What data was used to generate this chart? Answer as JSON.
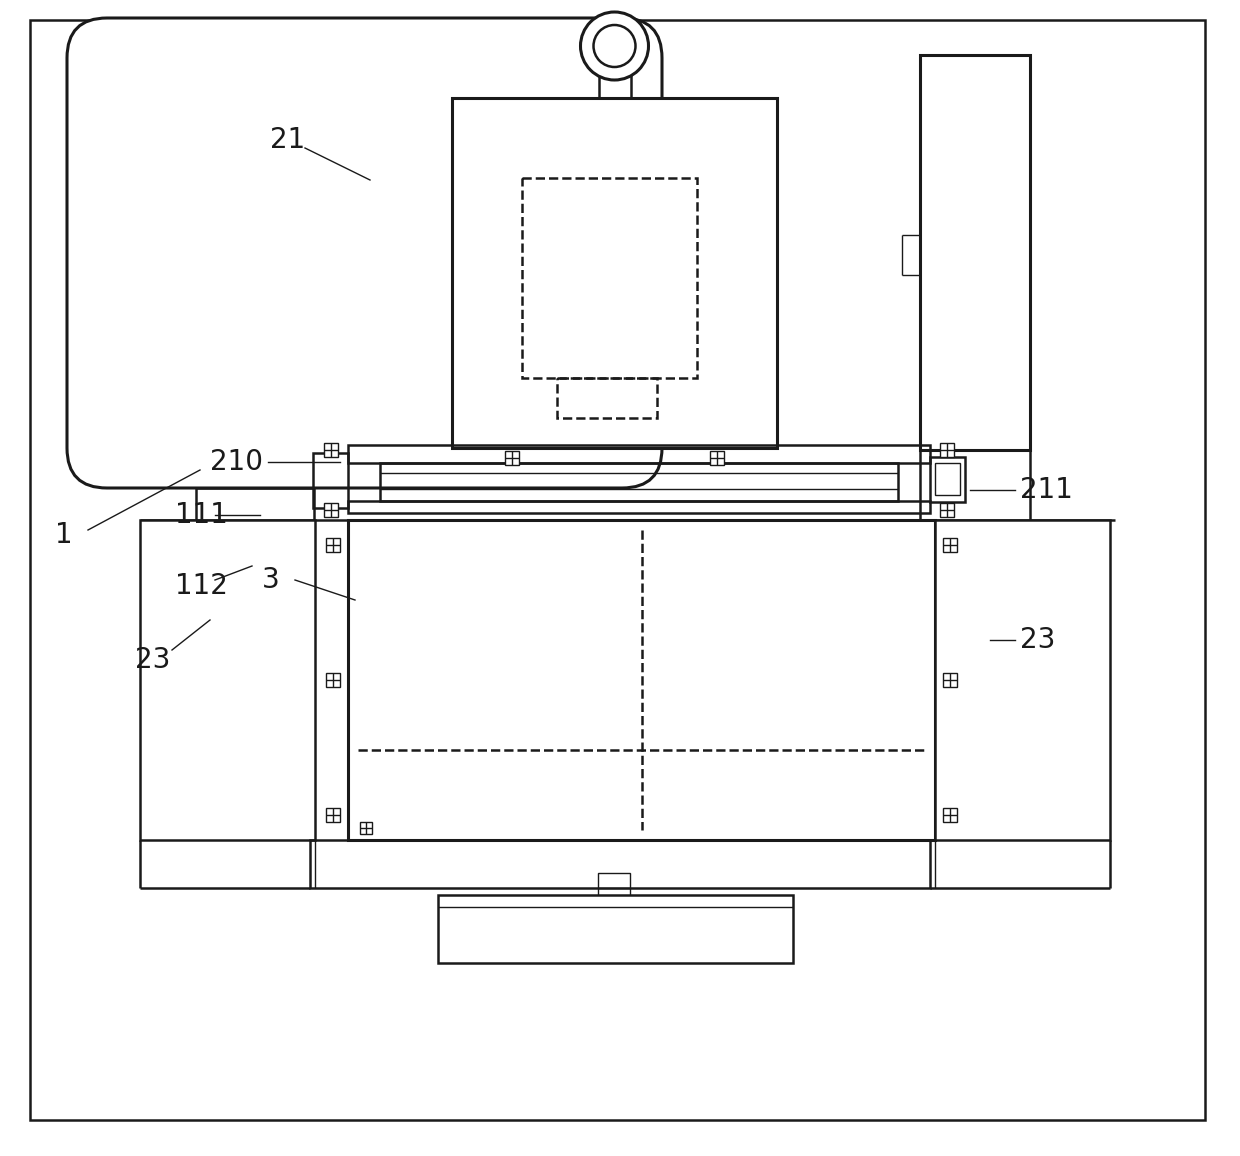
{
  "bg_color": "#ffffff",
  "line_color": "#1a1a1a",
  "lw_main": 1.8,
  "lw_thin": 1.0,
  "lw_thick": 2.2,
  "fig_width": 12.4,
  "fig_height": 11.56
}
